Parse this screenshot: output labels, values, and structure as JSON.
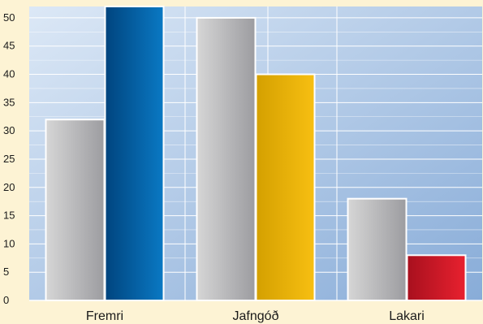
{
  "chart_data": {
    "type": "bar",
    "title": "",
    "xlabel": "",
    "ylabel": "",
    "categories": [
      "Fremri",
      "Jafngóð",
      "Lakari"
    ],
    "series": [
      {
        "values": [
          32,
          50,
          18
        ]
      },
      {
        "values": [
          52,
          40,
          8
        ]
      }
    ],
    "ylim": [
      0,
      52
    ],
    "yticks": [
      0,
      5,
      10,
      15,
      20,
      25,
      30,
      35,
      40,
      45,
      50
    ],
    "grid": true,
    "legend": "none",
    "colors": {
      "page_background": "#fdf3d4",
      "plot_background_light": "#dce8f6",
      "plot_background_dark": "#88acd8",
      "grid": "#ffffff",
      "series0_light": "#d6d6d6",
      "series0_dark": "#9c9ca0",
      "series1_category_colors": [
        [
          "#00447e",
          "#0a79c4"
        ],
        [
          "#d4a000",
          "#f7bf12"
        ],
        [
          "#a8101e",
          "#e8212f"
        ]
      ],
      "bar_outline": "#ffffff"
    }
  }
}
